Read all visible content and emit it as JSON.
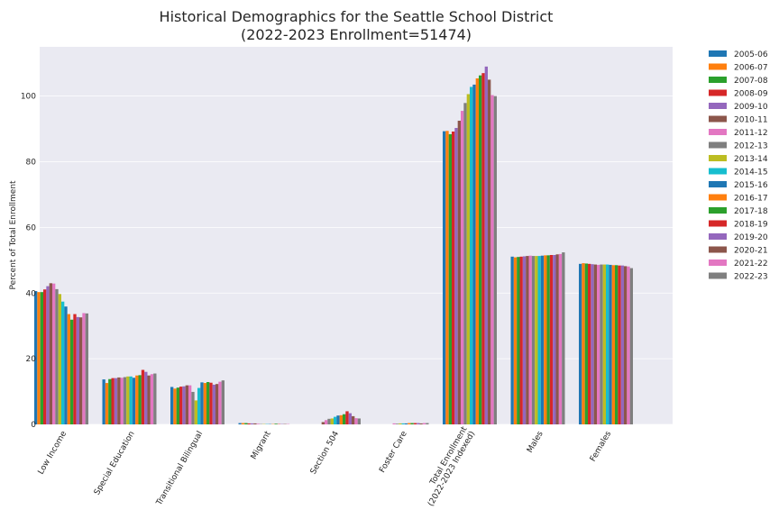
{
  "chart_data": {
    "type": "bar",
    "title_line1": "Historical Demographics for the Seattle School District",
    "title_line2": "(2022-2023 Enrollment=51474)",
    "xlabel": "",
    "ylabel": "Percent of Total Enrollment",
    "ylim": [
      0,
      115
    ],
    "yticks": [
      0,
      20,
      40,
      60,
      80,
      100
    ],
    "grid": true,
    "legend_position": "outside-right",
    "categories": [
      [
        "Low Income"
      ],
      [
        "Special Education"
      ],
      [
        "Transitional Bilingual"
      ],
      [
        "Migrant"
      ],
      [
        "Section 504"
      ],
      [
        "Foster Care"
      ],
      [
        "Total Enrollment",
        "(2022-2023 Indexed)"
      ],
      [
        "Males"
      ],
      [
        "Females"
      ]
    ],
    "colors": [
      "#1f77b4",
      "#ff7f0e",
      "#2ca02c",
      "#d62728",
      "#9467bd",
      "#8c564b",
      "#e377c2",
      "#7f7f7f",
      "#bcbd22",
      "#17becf"
    ],
    "series": [
      {
        "name": "2005-06",
        "values": [
          40.6,
          13.7,
          11.4,
          0.4,
          0.0,
          0.0,
          89.3,
          51.1,
          48.9
        ]
      },
      {
        "name": "2006-07",
        "values": [
          40.3,
          12.6,
          10.9,
          0.4,
          0.0,
          0.0,
          89.4,
          50.9,
          49.1
        ]
      },
      {
        "name": "2007-08",
        "values": [
          40.3,
          13.8,
          11.2,
          0.4,
          0.0,
          0.0,
          88.4,
          51.0,
          49.0
        ]
      },
      {
        "name": "2008-09",
        "values": [
          41.1,
          14.1,
          11.5,
          0.3,
          0.0,
          0.0,
          89.2,
          51.1,
          48.9
        ]
      },
      {
        "name": "2009-10",
        "values": [
          42.1,
          14.1,
          11.6,
          0.3,
          0.0,
          0.0,
          90.3,
          51.2,
          48.8
        ]
      },
      {
        "name": "2010-11",
        "values": [
          43.0,
          14.3,
          11.9,
          0.3,
          0.7,
          0.0,
          92.5,
          51.3,
          48.7
        ]
      },
      {
        "name": "2011-12",
        "values": [
          42.9,
          14.2,
          11.9,
          0.2,
          1.3,
          0.3,
          95.5,
          51.4,
          48.6
        ]
      },
      {
        "name": "2012-13",
        "values": [
          41.2,
          14.4,
          9.9,
          0.1,
          1.7,
          0.2,
          97.9,
          51.3,
          48.7
        ]
      },
      {
        "name": "2013-14",
        "values": [
          39.7,
          14.6,
          7.3,
          0.1,
          1.8,
          0.3,
          100.6,
          51.3,
          48.7
        ]
      },
      {
        "name": "2014-15",
        "values": [
          37.4,
          14.6,
          11.1,
          0.1,
          2.3,
          0.3,
          102.8,
          51.3,
          48.7
        ]
      },
      {
        "name": "2015-16",
        "values": [
          35.9,
          14.2,
          12.8,
          0.1,
          2.7,
          0.3,
          103.5,
          51.4,
          48.6
        ]
      },
      {
        "name": "2016-17",
        "values": [
          33.6,
          14.9,
          12.6,
          0.1,
          2.8,
          0.4,
          105.4,
          51.5,
          48.5
        ]
      },
      {
        "name": "2017-18",
        "values": [
          31.9,
          15.0,
          12.9,
          0.2,
          3.1,
          0.4,
          106.3,
          51.5,
          48.5
        ]
      },
      {
        "name": "2018-19",
        "values": [
          33.6,
          16.6,
          12.7,
          0.1,
          4.0,
          0.4,
          107.0,
          51.6,
          48.4
        ]
      },
      {
        "name": "2019-20",
        "values": [
          32.7,
          16.0,
          12.1,
          0.1,
          3.4,
          0.4,
          109.0,
          51.6,
          48.4
        ]
      },
      {
        "name": "2020-21",
        "values": [
          32.6,
          14.9,
          12.3,
          0.1,
          2.5,
          0.3,
          105.0,
          51.8,
          48.2
        ]
      },
      {
        "name": "2021-22",
        "values": [
          33.9,
          15.3,
          13.0,
          0.1,
          1.9,
          0.4,
          100.3,
          51.9,
          48.1
        ]
      },
      {
        "name": "2022-23",
        "values": [
          33.8,
          15.5,
          13.4,
          0.0,
          1.8,
          0.4,
          100.0,
          52.4,
          47.6
        ]
      }
    ]
  }
}
